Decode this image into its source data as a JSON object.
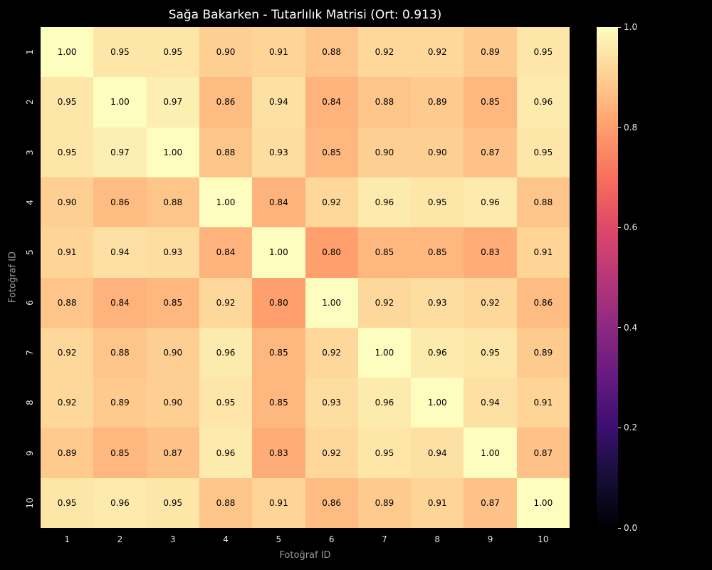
{
  "chart_data": {
    "type": "heatmap",
    "title": "Sağa Bakarken - Tutarlılık Matrisi (Ort: 0.913)",
    "xlabel": "Fotoğraf ID",
    "ylabel": "Fotoğraf ID",
    "x_ticks": [
      "1",
      "2",
      "3",
      "4",
      "5",
      "6",
      "7",
      "8",
      "9",
      "10"
    ],
    "y_ticks": [
      "1",
      "2",
      "3",
      "4",
      "5",
      "6",
      "7",
      "8",
      "9",
      "10"
    ],
    "values": [
      [
        1.0,
        0.95,
        0.95,
        0.9,
        0.91,
        0.88,
        0.92,
        0.92,
        0.89,
        0.95
      ],
      [
        0.95,
        1.0,
        0.97,
        0.86,
        0.94,
        0.84,
        0.88,
        0.89,
        0.85,
        0.96
      ],
      [
        0.95,
        0.97,
        1.0,
        0.88,
        0.93,
        0.85,
        0.9,
        0.9,
        0.87,
        0.95
      ],
      [
        0.9,
        0.86,
        0.88,
        1.0,
        0.84,
        0.92,
        0.96,
        0.95,
        0.96,
        0.88
      ],
      [
        0.91,
        0.94,
        0.93,
        0.84,
        1.0,
        0.8,
        0.85,
        0.85,
        0.83,
        0.91
      ],
      [
        0.88,
        0.84,
        0.85,
        0.92,
        0.8,
        1.0,
        0.92,
        0.93,
        0.92,
        0.86
      ],
      [
        0.92,
        0.88,
        0.9,
        0.96,
        0.85,
        0.92,
        1.0,
        0.96,
        0.95,
        0.89
      ],
      [
        0.92,
        0.89,
        0.9,
        0.95,
        0.85,
        0.93,
        0.96,
        1.0,
        0.94,
        0.91
      ],
      [
        0.89,
        0.85,
        0.87,
        0.96,
        0.83,
        0.92,
        0.95,
        0.94,
        1.0,
        0.87
      ],
      [
        0.95,
        0.96,
        0.95,
        0.88,
        0.91,
        0.86,
        0.89,
        0.91,
        0.87,
        1.0
      ]
    ],
    "decimals": 2,
    "vmin": 0.0,
    "vmax": 1.0,
    "grid": false,
    "colormap": "magma",
    "colormap_anchors": [
      {
        "t": 0.0,
        "color": "#000004"
      },
      {
        "t": 0.1,
        "color": "#140e36"
      },
      {
        "t": 0.2,
        "color": "#3b0f70"
      },
      {
        "t": 0.3,
        "color": "#641a80"
      },
      {
        "t": 0.4,
        "color": "#8c2981"
      },
      {
        "t": 0.5,
        "color": "#b73779"
      },
      {
        "t": 0.6,
        "color": "#de4968"
      },
      {
        "t": 0.7,
        "color": "#f7705c"
      },
      {
        "t": 0.8,
        "color": "#fe9f6d"
      },
      {
        "t": 0.9,
        "color": "#fecf92"
      },
      {
        "t": 1.0,
        "color": "#fcfdbf"
      }
    ],
    "colorbar": {
      "position": "right",
      "min": 0.0,
      "max": 1.0,
      "tick_labels": [
        "1.0",
        "0.8",
        "0.6",
        "0.4",
        "0.2",
        "0.0"
      ],
      "tick_values": [
        1.0,
        0.8,
        0.6,
        0.4,
        0.2,
        0.0
      ]
    }
  },
  "colors": {
    "background": "#000000",
    "title_text": "#ffffff",
    "tick_text": "#e6e6e6",
    "axis_label_text": "#999999",
    "cell_text": "#000000"
  }
}
